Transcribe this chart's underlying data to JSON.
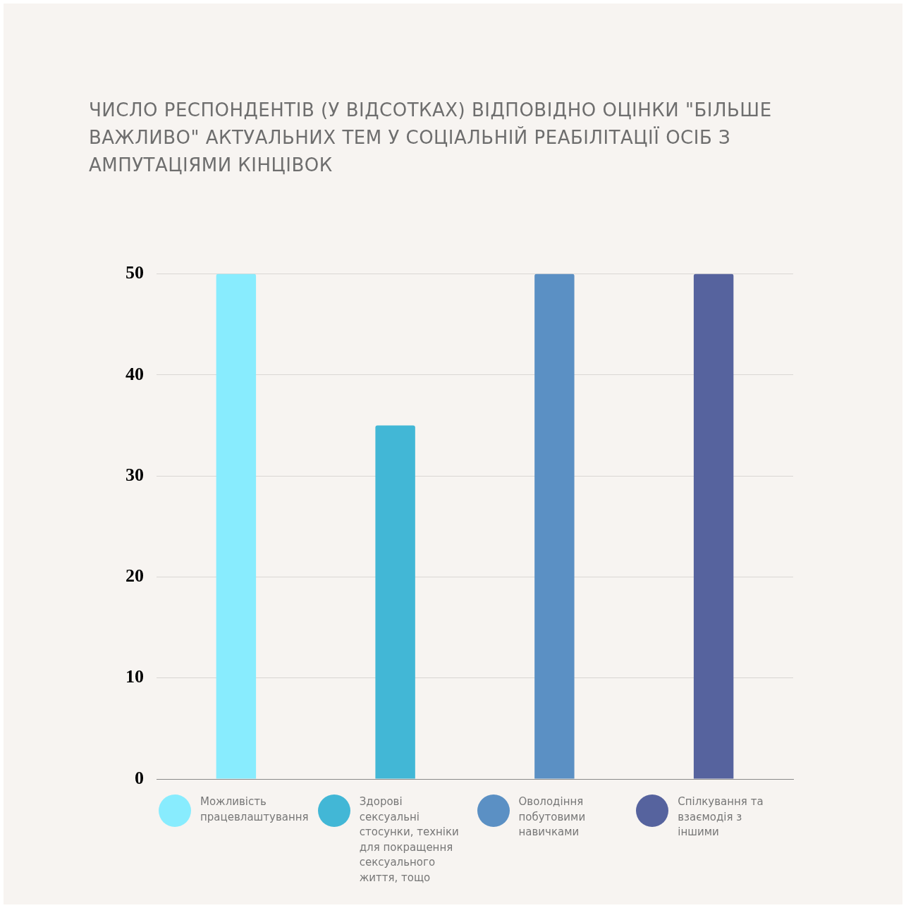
{
  "chart_data": {
    "type": "bar",
    "title": "ЧИСЛО РЕСПОНДЕНТІВ (У ВІДСОТКАХ) ВІДПОВІДНО ОЦІНКИ \"БІЛЬШЕ ВАЖЛИВО\" АКТУАЛЬНИХ ТЕМ У СОЦІАЛЬНІЙ РЕАБІЛІТАЦІЇ ОСІБ З АМПУТАЦІЯМИ КІНЦІВОК",
    "categories": [
      null
    ],
    "series": [
      {
        "name": "Можливість працевлаштування",
        "color": "#88ecfe",
        "values": [
          50
        ]
      },
      {
        "name": "Здорові сексуальні стосунки, техніки для покращення сексуального життя, тощо",
        "color": "#42b7d6",
        "values": [
          35
        ]
      },
      {
        "name": "Оволодіння побутовими навичками",
        "color": "#5b90c4",
        "values": [
          50
        ]
      },
      {
        "name": "Спілкування та взаємодія з іншими",
        "color": "#56639e",
        "values": [
          50
        ]
      }
    ],
    "ylim": [
      0,
      50
    ],
    "yticks": [
      0,
      10,
      20,
      30,
      40,
      50
    ],
    "grid": "y",
    "legend": "bottom",
    "tick_labels": "y"
  }
}
